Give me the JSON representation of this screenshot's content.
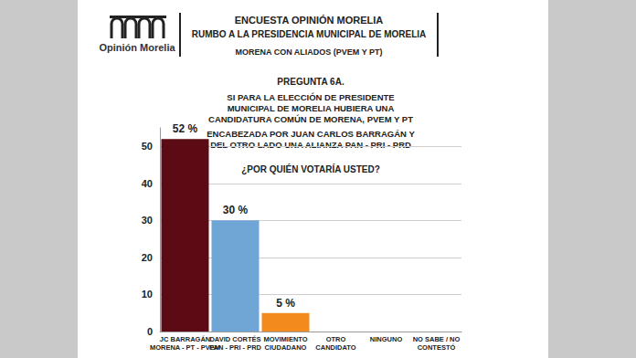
{
  "logo": "Opinión Morelia",
  "chart_data": {
    "type": "bar",
    "title": "ENCUESTA OPINIÓN MORELIA",
    "subtitle": "RUMBO A LA PRESIDENCIA MUNICIPAL DE MORELIA",
    "annotations": [
      "MORENA CON ALIADOS (PVEM Y PT)",
      "PREGUNTA 6A.",
      "SI PARA LA ELECCIÓN DE PRESIDENTE MUNICIPAL DE MORELIA HUBIERA UNA CANDIDATURA COMÚN DE MORENA, PVEM Y PT",
      "ENCABEZADA POR JUAN CARLOS BARRAGÁN Y DEL OTRO LADO UNA ALIANZA PAN - PRI - PRD",
      "¿POR QUIÉN VOTARÍA USTED?"
    ],
    "categories": [
      "JC BARRAGÁN\nMORENA - PT - PVEM",
      "DAVID CORTÉS\nPAN - PRI - PRD",
      "MOVIMIENTO\nCIUDADANO",
      "OTRO\nCANDIDATO",
      "NINGUNO",
      "NO SABE / NO\nCONTESTÓ"
    ],
    "values": [
      52,
      30,
      5,
      null,
      null,
      null
    ],
    "value_labels": [
      "52 %",
      "30 %",
      "5 %",
      null,
      null,
      null
    ],
    "colors": [
      "#5c0a14",
      "#6fa6d6",
      "#f28a1e",
      "#8a8a8a",
      "#8a8a8a",
      "#8a8a8a"
    ],
    "ylim": [
      0,
      55
    ],
    "yticks": [
      0,
      10,
      20,
      30,
      40,
      50
    ],
    "grid": true,
    "data_labels": true
  }
}
